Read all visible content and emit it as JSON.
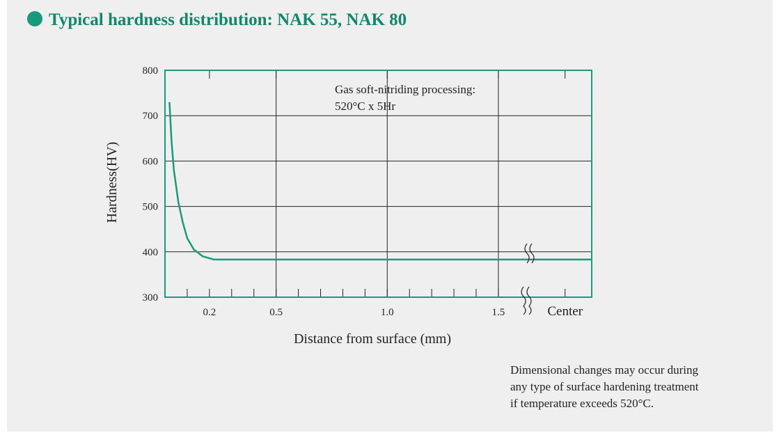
{
  "chart_data": {
    "type": "line",
    "title": "Typical hardness distribution: NAK 55, NAK 80",
    "x_label": "Distance from surface (mm)",
    "y_label": "Hardness(HV)",
    "annotation": [
      "Gas soft-nitriding processing:",
      "520°C x 5Hr"
    ],
    "note": [
      "Dimensional changes may occur during",
      "any type of surface hardening treatment",
      "if temperature exceeds 520°C."
    ],
    "x": [
      0.02,
      0.03,
      0.04,
      0.06,
      0.08,
      0.1,
      0.13,
      0.17,
      0.22,
      1.92
    ],
    "series": [
      {
        "color": "#1a9a7c",
        "values": [
          730,
          640,
          580,
          510,
          465,
          430,
          405,
          390,
          383,
          383
        ]
      }
    ],
    "xlim": [
      0,
      1.92
    ],
    "ylim": [
      300,
      800
    ],
    "xticks": [
      0.2,
      0.5,
      {
        "value": 1,
        "label": "1.0"
      },
      1.5,
      {
        "value": 1.8,
        "label": "Center"
      }
    ],
    "minor_xticks": [
      0.1,
      0.3,
      0.4,
      0.6,
      0.7,
      0.8,
      0.9,
      1.1,
      1.2,
      1.3,
      1.4
    ],
    "major_gridx": [
      0.5,
      1,
      1.5
    ],
    "yticks": [
      300,
      400,
      500,
      600,
      700,
      800
    ],
    "grid": true,
    "frame_color": "#1a9a7c"
  }
}
